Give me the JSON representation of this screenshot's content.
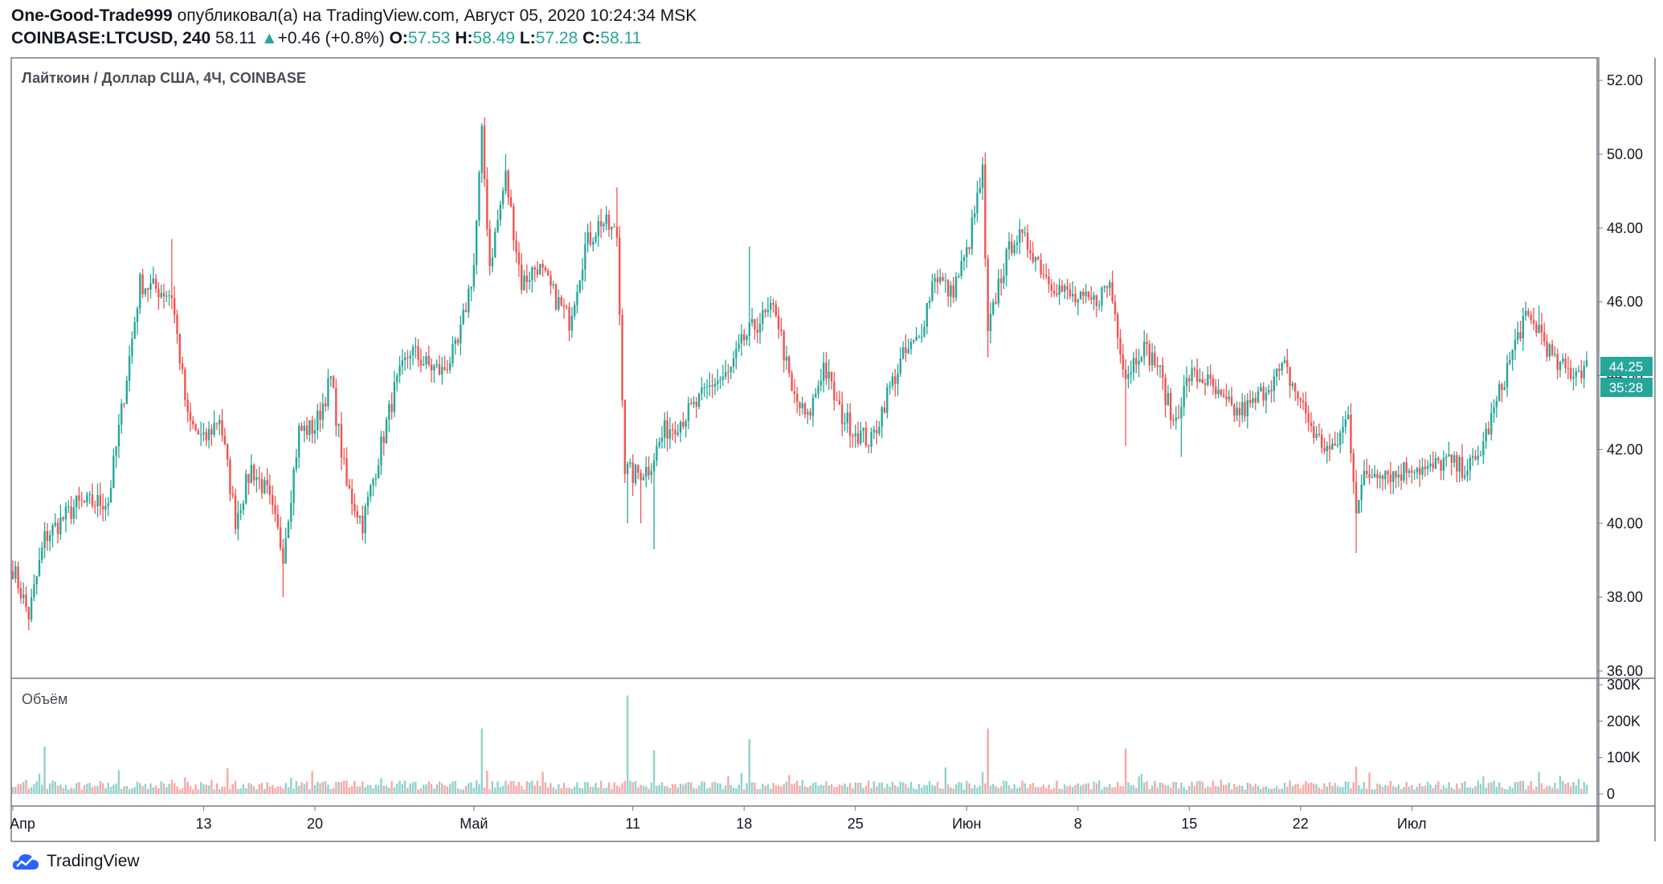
{
  "header": {
    "author": "One-Good-Trade999",
    "published_text": "опубликовал(а) на TradingView.com, Август 05, 2020 10:24:34 MSK",
    "symbol": "COINBASE:LTCUSD, 240",
    "last": "58.11",
    "change_arrow": "▲",
    "change": "+0.46 (+0.8%)",
    "o_label": "O:",
    "o_val": "57.53",
    "h_label": "H:",
    "h_val": "58.49",
    "l_label": "L:",
    "l_val": "57.28",
    "c_label": "C:",
    "c_val": "58.11"
  },
  "brand": {
    "name": "TradingView"
  },
  "colors": {
    "up": "#26a69a",
    "down": "#ef5350",
    "border": "#787b86",
    "text": "#131722"
  },
  "chart_data": {
    "type": "candlestick",
    "title": "Лайткоин / Доллар США, 4Ч, COINBASE",
    "price_axis": {
      "ticks": [
        "52.00",
        "50.00",
        "48.00",
        "46.00",
        "44.00",
        "42.00",
        "40.00",
        "38.00",
        "36.00"
      ],
      "ylim": [
        36.0,
        52.5
      ]
    },
    "last_price_label": "44.25",
    "countdown_label": "35:28",
    "time_axis": {
      "ticks": [
        "Апр",
        "13",
        "20",
        "Май",
        "11",
        "18",
        "25",
        "Июн",
        "8",
        "15",
        "22",
        "Июл"
      ]
    },
    "price_path": [
      {
        "d": 0,
        "p": 38.8
      },
      {
        "d": 1,
        "p": 37.5
      },
      {
        "d": 2,
        "p": 39.6
      },
      {
        "d": 4,
        "p": 40.5
      },
      {
        "d": 6,
        "p": 40.6
      },
      {
        "d": 7,
        "p": 43.5
      },
      {
        "d": 8,
        "p": 46.5
      },
      {
        "d": 10,
        "p": 46.2
      },
      {
        "d": 11,
        "p": 42.8
      },
      {
        "d": 12,
        "p": 42.2
      },
      {
        "d": 13,
        "p": 42.9
      },
      {
        "d": 14,
        "p": 40.1
      },
      {
        "d": 15,
        "p": 41.5
      },
      {
        "d": 16,
        "p": 40.8
      },
      {
        "d": 17,
        "p": 39.2
      },
      {
        "d": 18,
        "p": 42.5
      },
      {
        "d": 19,
        "p": 42.6
      },
      {
        "d": 20,
        "p": 43.9
      },
      {
        "d": 21,
        "p": 41.0
      },
      {
        "d": 22,
        "p": 40.0
      },
      {
        "d": 23,
        "p": 41.8
      },
      {
        "d": 24,
        "p": 43.6
      },
      {
        "d": 25,
        "p": 44.7
      },
      {
        "d": 26,
        "p": 44.3
      },
      {
        "d": 27,
        "p": 44.1
      },
      {
        "d": 28,
        "p": 44.8
      },
      {
        "d": 29,
        "p": 47.0
      },
      {
        "d": 29.5,
        "p": 50.5
      },
      {
        "d": 30,
        "p": 47.0
      },
      {
        "d": 31,
        "p": 49.4
      },
      {
        "d": 32,
        "p": 46.5
      },
      {
        "d": 33,
        "p": 47.0
      },
      {
        "d": 34,
        "p": 46.2
      },
      {
        "d": 35,
        "p": 45.5
      },
      {
        "d": 36,
        "p": 47.5
      },
      {
        "d": 37,
        "p": 48.2
      },
      {
        "d": 38,
        "p": 47.8
      },
      {
        "d": 38.5,
        "p": 41.5
      },
      {
        "d": 39,
        "p": 41.3
      },
      {
        "d": 40,
        "p": 41.5
      },
      {
        "d": 41,
        "p": 42.5
      },
      {
        "d": 42,
        "p": 42.8
      },
      {
        "d": 43,
        "p": 43.2
      },
      {
        "d": 44,
        "p": 43.8
      },
      {
        "d": 45,
        "p": 44.0
      },
      {
        "d": 46,
        "p": 45.0
      },
      {
        "d": 47,
        "p": 45.5
      },
      {
        "d": 48,
        "p": 45.8
      },
      {
        "d": 49,
        "p": 43.5
      },
      {
        "d": 50,
        "p": 42.8
      },
      {
        "d": 51,
        "p": 44.3
      },
      {
        "d": 52,
        "p": 43.0
      },
      {
        "d": 53,
        "p": 42.5
      },
      {
        "d": 54,
        "p": 42.2
      },
      {
        "d": 55,
        "p": 43.5
      },
      {
        "d": 56,
        "p": 44.5
      },
      {
        "d": 57,
        "p": 45.0
      },
      {
        "d": 58,
        "p": 46.8
      },
      {
        "d": 59,
        "p": 46.2
      },
      {
        "d": 60,
        "p": 47.3
      },
      {
        "d": 61,
        "p": 49.5
      },
      {
        "d": 61.3,
        "p": 45.0
      },
      {
        "d": 62,
        "p": 46.5
      },
      {
        "d": 63,
        "p": 47.8
      },
      {
        "d": 64,
        "p": 47.5
      },
      {
        "d": 65,
        "p": 46.7
      },
      {
        "d": 66,
        "p": 46.3
      },
      {
        "d": 67,
        "p": 46.0
      },
      {
        "d": 68,
        "p": 46.0
      },
      {
        "d": 69,
        "p": 46.5
      },
      {
        "d": 70,
        "p": 44.0
      },
      {
        "d": 71,
        "p": 44.8
      },
      {
        "d": 72,
        "p": 44.3
      },
      {
        "d": 73,
        "p": 42.7
      },
      {
        "d": 74,
        "p": 44.0
      },
      {
        "d": 75,
        "p": 43.9
      },
      {
        "d": 76,
        "p": 43.3
      },
      {
        "d": 77,
        "p": 43.0
      },
      {
        "d": 78,
        "p": 43.2
      },
      {
        "d": 79,
        "p": 43.8
      },
      {
        "d": 80,
        "p": 44.2
      },
      {
        "d": 81,
        "p": 43.3
      },
      {
        "d": 82,
        "p": 42.3
      },
      {
        "d": 83,
        "p": 41.9
      },
      {
        "d": 84,
        "p": 42.9
      },
      {
        "d": 84.5,
        "p": 40.5
      },
      {
        "d": 85,
        "p": 41.2
      },
      {
        "d": 86,
        "p": 41.5
      },
      {
        "d": 87,
        "p": 41.3
      },
      {
        "d": 88,
        "p": 41.6
      },
      {
        "d": 89,
        "p": 41.4
      },
      {
        "d": 90,
        "p": 41.7
      },
      {
        "d": 91,
        "p": 41.5
      },
      {
        "d": 92,
        "p": 41.6
      },
      {
        "d": 93,
        "p": 42.8
      },
      {
        "d": 94,
        "p": 44.2
      },
      {
        "d": 95,
        "p": 45.5
      },
      {
        "d": 96,
        "p": 45.3
      },
      {
        "d": 97,
        "p": 44.3
      },
      {
        "d": 98,
        "p": 44.1
      },
      {
        "d": 99,
        "p": 44.25
      }
    ],
    "notable_wicks": [
      {
        "d": 1,
        "lo": 37.2
      },
      {
        "d": 10,
        "hi": 47.7
      },
      {
        "d": 17,
        "lo": 38.0
      },
      {
        "d": 29.7,
        "hi": 51.0
      },
      {
        "d": 31,
        "hi": 50.0
      },
      {
        "d": 38,
        "hi": 49.1
      },
      {
        "d": 38.6,
        "lo": 40.0
      },
      {
        "d": 39.5,
        "lo": 40.0
      },
      {
        "d": 40.3,
        "lo": 39.3
      },
      {
        "d": 46.3,
        "hi": 47.5
      },
      {
        "d": 61,
        "hi": 49.9
      },
      {
        "d": 61.3,
        "lo": 44.5
      },
      {
        "d": 70,
        "lo": 42.1
      },
      {
        "d": 73.5,
        "lo": 41.8
      },
      {
        "d": 84.5,
        "lo": 39.2
      },
      {
        "d": 96,
        "hi": 45.9
      }
    ],
    "volume_panel": {
      "label": "Объём",
      "ticks": [
        "300K",
        "200K",
        "100K",
        "0"
      ],
      "ylim": [
        0,
        300000
      ],
      "spikes": [
        {
          "d": 2,
          "v": 130000
        },
        {
          "d": 29.5,
          "v": 180000
        },
        {
          "d": 38.6,
          "v": 270000
        },
        {
          "d": 40.3,
          "v": 120000
        },
        {
          "d": 46.3,
          "v": 150000
        },
        {
          "d": 61.3,
          "v": 180000
        },
        {
          "d": 70,
          "v": 125000
        },
        {
          "d": 84.5,
          "v": 75000
        }
      ]
    }
  }
}
